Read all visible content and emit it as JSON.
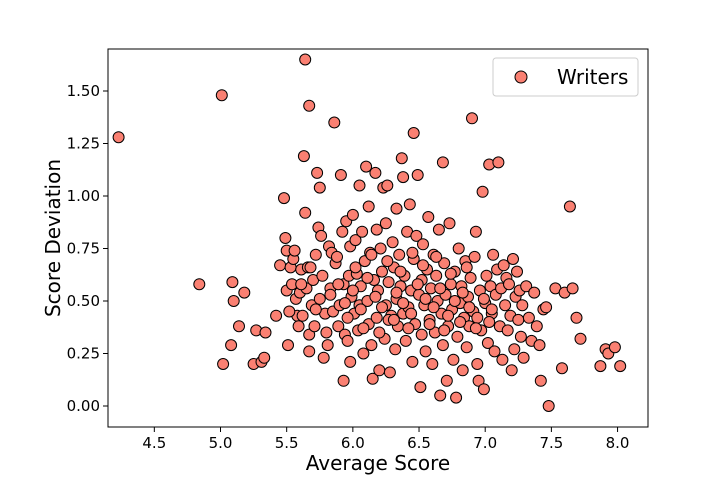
{
  "chart_data": {
    "type": "scatter",
    "xlabel": "Average Score",
    "ylabel": "Score Deviation",
    "xlim": [
      4.15,
      8.23
    ],
    "ylim": [
      -0.1,
      1.7
    ],
    "xticks": [
      4.5,
      5.0,
      5.5,
      6.0,
      6.5,
      7.0,
      7.5,
      8.0
    ],
    "xtick_labels": [
      "4.5",
      "5.0",
      "5.5",
      "6.0",
      "6.5",
      "7.0",
      "7.5",
      "8.0"
    ],
    "yticks": [
      0.0,
      0.25,
      0.5,
      0.75,
      1.0,
      1.25,
      1.5
    ],
    "ytick_labels": [
      "0.00",
      "0.25",
      "0.50",
      "0.75",
      "1.00",
      "1.25",
      "1.50"
    ],
    "grid": false,
    "legend_position": "top-right",
    "series": [
      {
        "name": "Writers",
        "color": "#fa8072",
        "edge_color": "#000000",
        "points": [
          [
            4.23,
            1.28
          ],
          [
            4.84,
            0.58
          ],
          [
            5.01,
            1.48
          ],
          [
            5.02,
            0.2
          ],
          [
            5.08,
            0.29
          ],
          [
            5.09,
            0.59
          ],
          [
            5.1,
            0.5
          ],
          [
            5.14,
            0.38
          ],
          [
            5.18,
            0.54
          ],
          [
            5.25,
            0.2
          ],
          [
            5.27,
            0.36
          ],
          [
            5.31,
            0.21
          ],
          [
            5.33,
            0.23
          ],
          [
            5.34,
            0.35
          ],
          [
            5.42,
            0.43
          ],
          [
            5.45,
            0.67
          ],
          [
            5.48,
            0.99
          ],
          [
            5.49,
            0.8
          ],
          [
            5.5,
            0.55
          ],
          [
            5.51,
            0.29
          ],
          [
            5.5,
            0.74
          ],
          [
            5.53,
            0.66
          ],
          [
            5.54,
            0.58
          ],
          [
            5.55,
            0.7
          ],
          [
            5.56,
            0.74
          ],
          [
            5.57,
            0.51
          ],
          [
            5.58,
            0.43
          ],
          [
            5.59,
            0.38
          ],
          [
            5.6,
            0.54
          ],
          [
            5.61,
            0.65
          ],
          [
            5.62,
            0.43
          ],
          [
            5.63,
            1.19
          ],
          [
            5.64,
            1.65
          ],
          [
            5.64,
            0.92
          ],
          [
            5.65,
            0.56
          ],
          [
            5.66,
            0.66
          ],
          [
            5.67,
            0.26
          ],
          [
            5.67,
            0.34
          ],
          [
            5.67,
            1.43
          ],
          [
            5.68,
            0.66
          ],
          [
            5.69,
            0.48
          ],
          [
            5.7,
            0.6
          ],
          [
            5.71,
            0.38
          ],
          [
            5.72,
            0.72
          ],
          [
            5.73,
            1.11
          ],
          [
            5.74,
            0.85
          ],
          [
            5.75,
            1.04
          ],
          [
            5.75,
            0.51
          ],
          [
            5.76,
            0.81
          ],
          [
            5.77,
            0.62
          ],
          [
            5.78,
            0.23
          ],
          [
            5.79,
            0.44
          ],
          [
            5.8,
            0.35
          ],
          [
            5.81,
            0.29
          ],
          [
            5.82,
            0.76
          ],
          [
            5.83,
            0.56
          ],
          [
            5.84,
            0.73
          ],
          [
            5.85,
            0.45
          ],
          [
            5.86,
            1.35
          ],
          [
            5.87,
            0.68
          ],
          [
            5.88,
            0.71
          ],
          [
            5.89,
            0.38
          ],
          [
            5.9,
            0.48
          ],
          [
            5.91,
            1.1
          ],
          [
            5.92,
            0.83
          ],
          [
            5.93,
            0.12
          ],
          [
            5.93,
            0.58
          ],
          [
            5.94,
            0.34
          ],
          [
            5.95,
            0.88
          ],
          [
            5.96,
            0.31
          ],
          [
            5.97,
            0.62
          ],
          [
            5.98,
            0.76
          ],
          [
            5.98,
            0.21
          ],
          [
            5.99,
            0.52
          ],
          [
            6.0,
            0.91
          ],
          [
            6.01,
            0.44
          ],
          [
            6.02,
            0.79
          ],
          [
            6.03,
            0.63
          ],
          [
            6.04,
            0.36
          ],
          [
            6.05,
            0.48
          ],
          [
            6.05,
            1.05
          ],
          [
            6.06,
            0.57
          ],
          [
            6.07,
            0.83
          ],
          [
            6.08,
            0.25
          ],
          [
            6.09,
            0.69
          ],
          [
            6.1,
            1.14
          ],
          [
            6.11,
            0.5
          ],
          [
            6.12,
            0.39
          ],
          [
            6.12,
            0.95
          ],
          [
            6.13,
            0.73
          ],
          [
            6.14,
            0.29
          ],
          [
            6.15,
            0.13
          ],
          [
            6.16,
            0.6
          ],
          [
            6.17,
            1.11
          ],
          [
            6.18,
            0.42
          ],
          [
            6.18,
            0.84
          ],
          [
            6.19,
            0.55
          ],
          [
            6.2,
            0.17
          ],
          [
            6.21,
            0.75
          ],
          [
            6.22,
            0.64
          ],
          [
            6.23,
            1.04
          ],
          [
            6.24,
            0.32
          ],
          [
            6.25,
            0.48
          ],
          [
            6.25,
            0.87
          ],
          [
            6.26,
            1.05
          ],
          [
            6.27,
            0.59
          ],
          [
            6.28,
            0.16
          ],
          [
            6.29,
            0.43
          ],
          [
            6.3,
            0.78
          ],
          [
            6.31,
            0.66
          ],
          [
            6.32,
            0.27
          ],
          [
            6.33,
            0.51
          ],
          [
            6.33,
            0.94
          ],
          [
            6.34,
            0.38
          ],
          [
            6.35,
            0.72
          ],
          [
            6.36,
            0.57
          ],
          [
            6.37,
            1.18
          ],
          [
            6.38,
            0.44
          ],
          [
            6.38,
            1.09
          ],
          [
            6.39,
            0.62
          ],
          [
            6.4,
            0.31
          ],
          [
            6.41,
            0.83
          ],
          [
            6.42,
            0.47
          ],
          [
            6.43,
            0.96
          ],
          [
            6.44,
            0.55
          ],
          [
            6.45,
            0.21
          ],
          [
            6.46,
            0.7
          ],
          [
            6.46,
            1.3
          ],
          [
            6.47,
            0.39
          ],
          [
            6.48,
            0.81
          ],
          [
            6.49,
            1.1
          ],
          [
            6.5,
            0.53
          ],
          [
            6.51,
            0.09
          ],
          [
            6.52,
            0.34
          ],
          [
            6.52,
            0.6
          ],
          [
            6.53,
            0.77
          ],
          [
            6.54,
            0.48
          ],
          [
            6.55,
            0.26
          ],
          [
            6.56,
            0.65
          ],
          [
            6.57,
            0.9
          ],
          [
            6.58,
            0.41
          ],
          [
            6.59,
            0.56
          ],
          [
            6.6,
            0.2
          ],
          [
            6.61,
            0.72
          ],
          [
            6.62,
            0.35
          ],
          [
            6.63,
            0.62
          ],
          [
            6.64,
            0.5
          ],
          [
            6.65,
            0.84
          ],
          [
            6.66,
            0.05
          ],
          [
            6.67,
            0.44
          ],
          [
            6.68,
            1.16
          ],
          [
            6.68,
            0.29
          ],
          [
            6.69,
            0.68
          ],
          [
            6.7,
            0.53
          ],
          [
            6.71,
            0.12
          ],
          [
            6.72,
            0.38
          ],
          [
            6.73,
            0.87
          ],
          [
            6.74,
            0.58
          ],
          [
            6.75,
            0.46
          ],
          [
            6.76,
            0.22
          ],
          [
            6.77,
            0.64
          ],
          [
            6.78,
            0.04
          ],
          [
            6.79,
            0.33
          ],
          [
            6.8,
            0.75
          ],
          [
            6.81,
            0.49
          ],
          [
            6.82,
            0.57
          ],
          [
            6.83,
            0.17
          ],
          [
            6.84,
            0.42
          ],
          [
            6.85,
            0.69
          ],
          [
            6.86,
            0.28
          ],
          [
            6.87,
            0.52
          ],
          [
            6.88,
            0.38
          ],
          [
            6.89,
            0.61
          ],
          [
            6.9,
            1.37
          ],
          [
            6.91,
            0.45
          ],
          [
            6.92,
            0.71
          ],
          [
            6.93,
            0.83
          ],
          [
            6.94,
            0.2
          ],
          [
            6.95,
            0.12
          ],
          [
            6.96,
            0.55
          ],
          [
            6.97,
            0.36
          ],
          [
            6.98,
            1.02
          ],
          [
            6.99,
            0.08
          ],
          [
            7.0,
            0.49
          ],
          [
            7.01,
            0.62
          ],
          [
            7.02,
            0.3
          ],
          [
            7.03,
            1.15
          ],
          [
            7.04,
            0.57
          ],
          [
            7.05,
            0.44
          ],
          [
            7.06,
            0.72
          ],
          [
            7.07,
            0.26
          ],
          [
            7.08,
            0.53
          ],
          [
            7.09,
            0.65
          ],
          [
            7.1,
            1.16
          ],
          [
            7.11,
            0.38
          ],
          [
            7.12,
            0.56
          ],
          [
            7.13,
            0.22
          ],
          [
            7.14,
            0.67
          ],
          [
            7.15,
            0.48
          ],
          [
            7.16,
            0.61
          ],
          [
            7.17,
            0.36
          ],
          [
            7.18,
            0.58
          ],
          [
            7.19,
            0.43
          ],
          [
            7.2,
            0.17
          ],
          [
            7.21,
            0.7
          ],
          [
            7.22,
            0.27
          ],
          [
            7.23,
            0.52
          ],
          [
            7.24,
            0.64
          ],
          [
            7.25,
            0.41
          ],
          [
            7.26,
            0.55
          ],
          [
            7.27,
            0.33
          ],
          [
            7.28,
            0.48
          ],
          [
            7.29,
            0.23
          ],
          [
            7.31,
            0.57
          ],
          [
            7.33,
            0.42
          ],
          [
            7.35,
            0.31
          ],
          [
            7.37,
            0.54
          ],
          [
            7.39,
            0.38
          ],
          [
            7.41,
            0.29
          ],
          [
            7.42,
            0.12
          ],
          [
            7.44,
            0.46
          ],
          [
            7.46,
            0.47
          ],
          [
            7.48,
            0.0
          ],
          [
            7.53,
            0.56
          ],
          [
            7.58,
            0.18
          ],
          [
            7.6,
            0.54
          ],
          [
            7.64,
            0.95
          ],
          [
            7.66,
            0.56
          ],
          [
            7.69,
            0.42
          ],
          [
            7.72,
            0.32
          ],
          [
            7.87,
            0.19
          ],
          [
            7.91,
            0.27
          ],
          [
            7.93,
            0.25
          ],
          [
            7.98,
            0.28
          ],
          [
            8.02,
            0.19
          ],
          [
            5.52,
            0.45
          ],
          [
            5.61,
            0.58
          ],
          [
            5.72,
            0.46
          ],
          [
            5.83,
            0.53
          ],
          [
            5.94,
            0.49
          ],
          [
            6.0,
            0.55
          ],
          [
            6.06,
            0.46
          ],
          [
            6.11,
            0.61
          ],
          [
            6.17,
            0.52
          ],
          [
            6.22,
            0.47
          ],
          [
            6.27,
            0.41
          ],
          [
            6.33,
            0.54
          ],
          [
            6.38,
            0.49
          ],
          [
            6.44,
            0.44
          ],
          [
            6.49,
            0.58
          ],
          [
            6.55,
            0.51
          ],
          [
            6.61,
            0.47
          ],
          [
            6.66,
            0.56
          ],
          [
            6.72,
            0.43
          ],
          [
            6.77,
            0.5
          ],
          [
            6.83,
            0.54
          ],
          [
            6.88,
            0.47
          ],
          [
            6.94,
            0.42
          ],
          [
            6.99,
            0.51
          ],
          [
            7.05,
            0.46
          ],
          [
            5.89,
            0.58
          ],
          [
            6.02,
            0.66
          ],
          [
            6.14,
            0.72
          ],
          [
            6.26,
            0.69
          ],
          [
            6.36,
            0.64
          ],
          [
            6.45,
            0.73
          ],
          [
            6.53,
            0.67
          ],
          [
            6.63,
            0.71
          ],
          [
            6.74,
            0.63
          ],
          [
            6.86,
            0.66
          ],
          [
            5.96,
            0.42
          ],
          [
            6.08,
            0.37
          ],
          [
            6.2,
            0.35
          ],
          [
            6.31,
            0.41
          ],
          [
            6.42,
            0.37
          ],
          [
            6.58,
            0.39
          ],
          [
            6.69,
            0.36
          ],
          [
            6.81,
            0.4
          ],
          [
            6.93,
            0.37
          ],
          [
            7.03,
            0.4
          ]
        ]
      }
    ]
  }
}
